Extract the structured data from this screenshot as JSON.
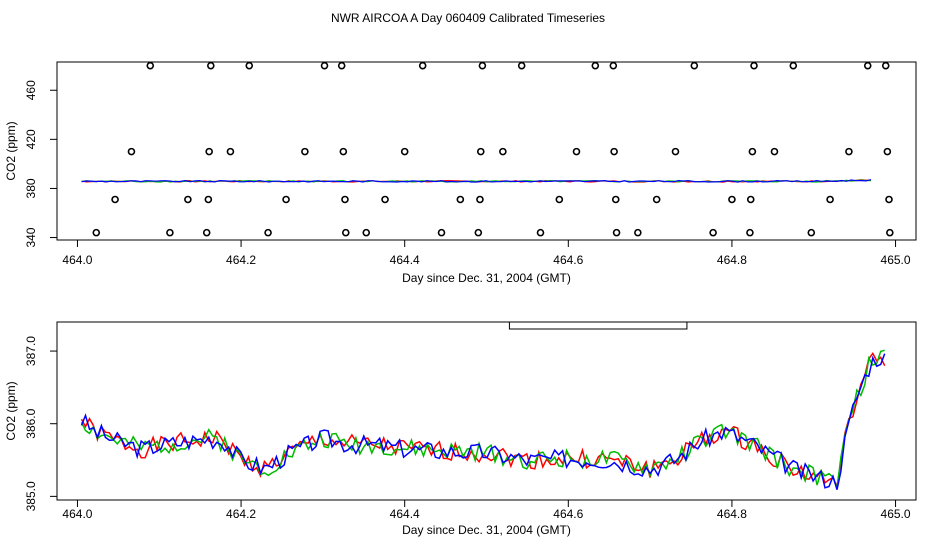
{
  "title": "NWR AIRCOA A  Day 060409  Calibrated Timeseries",
  "chart_data": [
    {
      "type": "scatter",
      "name": "top-panel",
      "xlabel": "Day since Dec. 31, 2004 (GMT)",
      "ylabel": "CO2 (ppm)",
      "xlim": [
        463.975,
        465.025
      ],
      "ylim": [
        338,
        483
      ],
      "xticks": [
        464.0,
        464.2,
        464.4,
        464.6,
        464.8,
        465.0
      ],
      "xtick_labels": [
        "464.0",
        "464.2",
        "464.4",
        "464.6",
        "464.8",
        "465.0"
      ],
      "yticks": [
        340,
        380,
        420,
        460
      ],
      "ytick_labels": [
        "340",
        "380",
        "420",
        "460"
      ],
      "series_colors": [
        "#ff0000",
        "#00bb00",
        "#0000ff"
      ],
      "line_level": 385.8,
      "line_end": [
        464.97,
        386.8
      ],
      "points": [
        {
          "x": 464.023,
          "y": 344
        },
        {
          "x": 464.046,
          "y": 371
        },
        {
          "x": 464.066,
          "y": 410
        },
        {
          "x": 464.089,
          "y": 480
        },
        {
          "x": 464.113,
          "y": 344
        },
        {
          "x": 464.135,
          "y": 371
        },
        {
          "x": 464.158,
          "y": 344
        },
        {
          "x": 464.16,
          "y": 371
        },
        {
          "x": 464.161,
          "y": 410
        },
        {
          "x": 464.163,
          "y": 480
        },
        {
          "x": 464.187,
          "y": 410
        },
        {
          "x": 464.21,
          "y": 480
        },
        {
          "x": 464.233,
          "y": 344
        },
        {
          "x": 464.255,
          "y": 371
        },
        {
          "x": 464.278,
          "y": 410
        },
        {
          "x": 464.302,
          "y": 480
        },
        {
          "x": 464.323,
          "y": 480
        },
        {
          "x": 464.325,
          "y": 410
        },
        {
          "x": 464.327,
          "y": 371
        },
        {
          "x": 464.328,
          "y": 344
        },
        {
          "x": 464.353,
          "y": 344
        },
        {
          "x": 464.376,
          "y": 371
        },
        {
          "x": 464.4,
          "y": 410
        },
        {
          "x": 464.422,
          "y": 480
        },
        {
          "x": 464.445,
          "y": 344
        },
        {
          "x": 464.468,
          "y": 371
        },
        {
          "x": 464.49,
          "y": 344
        },
        {
          "x": 464.492,
          "y": 371
        },
        {
          "x": 464.493,
          "y": 410
        },
        {
          "x": 464.495,
          "y": 480
        },
        {
          "x": 464.52,
          "y": 410
        },
        {
          "x": 464.543,
          "y": 480
        },
        {
          "x": 464.566,
          "y": 344
        },
        {
          "x": 464.589,
          "y": 371
        },
        {
          "x": 464.61,
          "y": 410
        },
        {
          "x": 464.633,
          "y": 480
        },
        {
          "x": 464.655,
          "y": 480
        },
        {
          "x": 464.656,
          "y": 410
        },
        {
          "x": 464.658,
          "y": 371
        },
        {
          "x": 464.659,
          "y": 344
        },
        {
          "x": 464.685,
          "y": 344
        },
        {
          "x": 464.708,
          "y": 371
        },
        {
          "x": 464.731,
          "y": 410
        },
        {
          "x": 464.754,
          "y": 480
        },
        {
          "x": 464.777,
          "y": 344
        },
        {
          "x": 464.8,
          "y": 371
        },
        {
          "x": 464.822,
          "y": 344
        },
        {
          "x": 464.823,
          "y": 371
        },
        {
          "x": 464.825,
          "y": 410
        },
        {
          "x": 464.827,
          "y": 480
        },
        {
          "x": 464.852,
          "y": 410
        },
        {
          "x": 464.875,
          "y": 480
        },
        {
          "x": 464.897,
          "y": 344
        },
        {
          "x": 464.92,
          "y": 371
        },
        {
          "x": 464.943,
          "y": 410
        },
        {
          "x": 464.966,
          "y": 480
        },
        {
          "x": 464.988,
          "y": 480
        },
        {
          "x": 464.99,
          "y": 410
        },
        {
          "x": 464.992,
          "y": 371
        },
        {
          "x": 464.993,
          "y": 344
        }
      ]
    },
    {
      "type": "line",
      "name": "bottom-panel",
      "xlabel": "Day since Dec. 31, 2004 (GMT)",
      "ylabel": "CO2 (ppm)",
      "xlim": [
        463.975,
        465.025
      ],
      "ylim": [
        384.95,
        387.4
      ],
      "xticks": [
        464.0,
        464.2,
        464.4,
        464.6,
        464.8,
        465.0
      ],
      "xtick_labels": [
        "464.0",
        "464.2",
        "464.4",
        "464.6",
        "464.8",
        "465.0"
      ],
      "yticks": [
        385.0,
        386.0,
        387.0
      ],
      "ytick_labels": [
        "385.0",
        "386.0",
        "387.0"
      ],
      "legend_box_x": [
        464.528,
        464.745
      ],
      "series": [
        {
          "name": "red",
          "color": "#ff0000",
          "x0": 464.005,
          "dx": 0.00486,
          "seed": 1
        },
        {
          "name": "green",
          "color": "#00bb00",
          "x0": 464.005,
          "dx": 0.00486,
          "seed": 2
        },
        {
          "name": "blue",
          "color": "#0000ff",
          "x0": 464.005,
          "dx": 0.00486,
          "seed": 3
        }
      ],
      "baseline": [
        [
          464.005,
          386.05
        ],
        [
          464.02,
          385.9
        ],
        [
          464.05,
          385.75
        ],
        [
          464.08,
          385.65
        ],
        [
          464.1,
          385.7
        ],
        [
          464.13,
          385.75
        ],
        [
          464.16,
          385.8
        ],
        [
          464.18,
          385.75
        ],
        [
          464.2,
          385.5
        ],
        [
          464.23,
          385.38
        ],
        [
          464.26,
          385.6
        ],
        [
          464.3,
          385.8
        ],
        [
          464.33,
          385.72
        ],
        [
          464.37,
          385.7
        ],
        [
          464.4,
          385.65
        ],
        [
          464.45,
          385.62
        ],
        [
          464.5,
          385.6
        ],
        [
          464.55,
          385.5
        ],
        [
          464.6,
          385.52
        ],
        [
          464.65,
          385.5
        ],
        [
          464.7,
          385.38
        ],
        [
          464.73,
          385.5
        ],
        [
          464.76,
          385.75
        ],
        [
          464.79,
          385.9
        ],
        [
          464.82,
          385.75
        ],
        [
          464.85,
          385.55
        ],
        [
          464.88,
          385.35
        ],
        [
          464.91,
          385.25
        ],
        [
          464.93,
          385.2
        ],
        [
          464.935,
          385.6
        ],
        [
          464.95,
          386.3
        ],
        [
          464.97,
          386.85
        ],
        [
          464.985,
          386.95
        ],
        [
          464.99,
          386.8
        ]
      ]
    }
  ]
}
